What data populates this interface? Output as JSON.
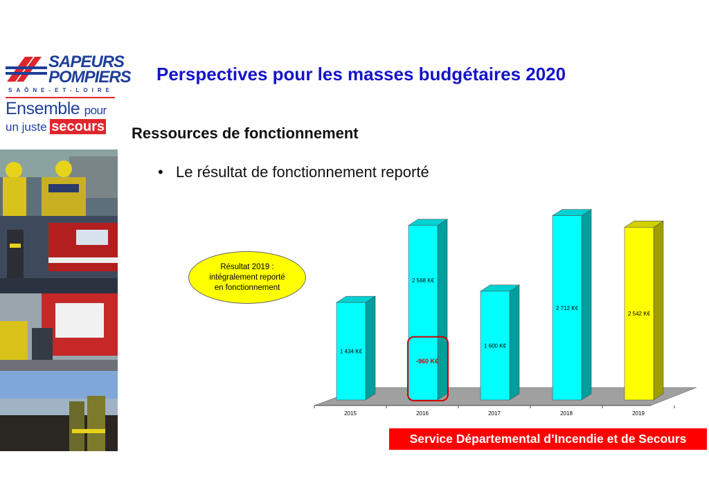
{
  "header": {
    "title": "Perspectives pour les masses budgétaires 2020",
    "subtitle": "Ressources de fonctionnement",
    "bullet": "Le résultat de fonctionnement reporté"
  },
  "logo": {
    "brand_line1": "SAPEURS",
    "brand_line2": "POMPIERS",
    "region": "SAÔNE-ET-LOIRE",
    "tagline_word1": "Ensemble",
    "tagline_word2": "pour",
    "tagline_word3": "un juste",
    "tagline_word4": "secours"
  },
  "callout": {
    "text": "Résultat 2019 : intégralement reporté en fonctionnement"
  },
  "footer": {
    "text": "Service Départemental d’Incendie et de Secours"
  },
  "colors": {
    "title": "#1414c8",
    "bar_cyan": "#00ffff",
    "bar_yellow": "#ffff00",
    "footer": "#ff0000",
    "highlight_box": "#d40000"
  },
  "chart_data": {
    "type": "bar",
    "categories": [
      "2015",
      "2016",
      "2017",
      "2018",
      "2019"
    ],
    "values": [
      1434,
      2568,
      1600,
      2712,
      2542
    ],
    "labels": [
      "1 434 K€",
      "2 568 K€",
      "1 600 K€",
      "2 712 K€",
      "2 542 K€"
    ],
    "bar_colors": [
      "#00ffff",
      "#00ffff",
      "#00ffff",
      "#00ffff",
      "#ffff00"
    ],
    "annotation": {
      "category": "2016",
      "text": "-960 K€",
      "value": -960
    },
    "ylim": [
      0,
      2800
    ],
    "grid": false,
    "three_d": true
  }
}
